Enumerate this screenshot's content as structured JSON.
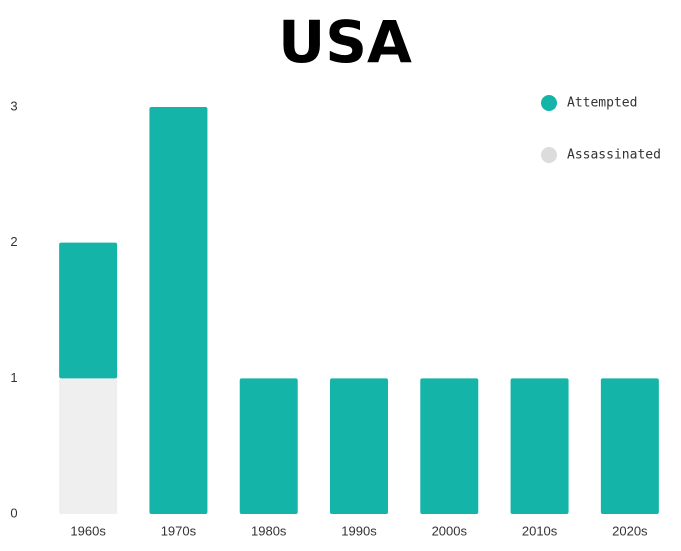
{
  "chart_data": {
    "type": "stacked_bar",
    "title": "USA",
    "categories": [
      "1960s",
      "1970s",
      "1980s",
      "1990s",
      "2000s",
      "2010s",
      "2020s"
    ],
    "series": [
      {
        "name": "Assassinated",
        "color": "#efefef",
        "values": [
          1,
          0,
          0,
          0,
          0,
          0,
          0
        ]
      },
      {
        "name": "Attempted",
        "color": "#14b4a9",
        "values": [
          1,
          3,
          1,
          1,
          1,
          1,
          1
        ]
      }
    ],
    "legend_series_order": [
      1,
      0
    ],
    "ylim": [
      0,
      3
    ],
    "yticks": [
      0,
      1,
      2,
      3
    ],
    "grid": false
  }
}
